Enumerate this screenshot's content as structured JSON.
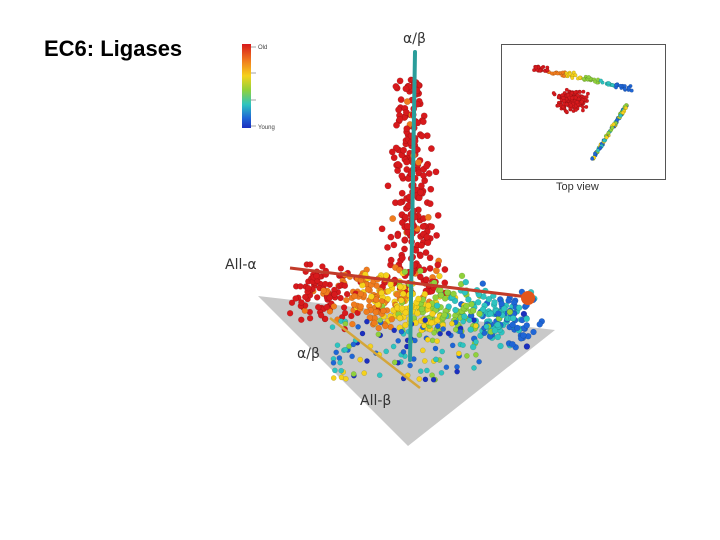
{
  "title": "EC6: Ligases",
  "axes": {
    "vertical": "α/β",
    "left": "All-α",
    "lower": "α/β",
    "bottom": "All-β"
  },
  "legend": {
    "top": "Old",
    "bottom": "Young",
    "colors": [
      "#d7191c",
      "#f07c1e",
      "#f5d21c",
      "#8fd13c",
      "#2ec4c0",
      "#1f66d6",
      "#1b2fbf"
    ]
  },
  "inset": {
    "caption": "Top view"
  }
}
